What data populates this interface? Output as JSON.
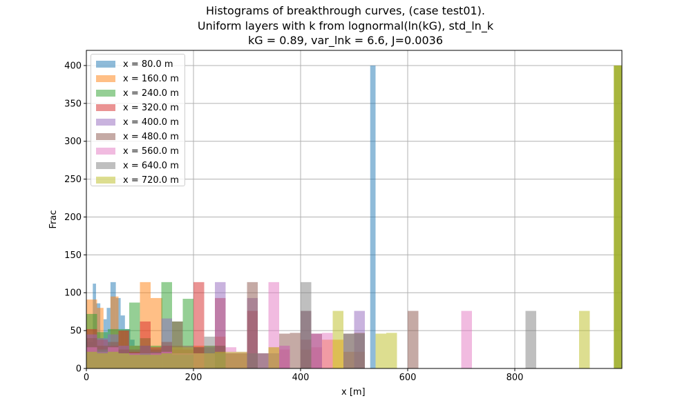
{
  "chart_data": {
    "type": "bar",
    "title_lines": [
      "Histograms of breakthrough curves, (case test01).",
      "Uniform layers with k from lognormal(ln(kG), std_ln_k",
      "kG = 0.89, var_lnk = 6.6, J=0.0036"
    ],
    "xlabel": "x [m]",
    "ylabel": "Frac",
    "xlim": [
      0,
      1000
    ],
    "ylim": [
      0,
      420
    ],
    "x_ticks": [
      0,
      200,
      400,
      600,
      800
    ],
    "y_ticks": [
      0,
      50,
      100,
      150,
      200,
      250,
      300,
      350,
      400
    ],
    "grid": true,
    "legend_position": "upper-left",
    "bar_alpha": 0.5,
    "series": [
      {
        "name": "x = 80.0 m",
        "color": "#1f77b4",
        "bins": [
          [
            0,
            12,
            35
          ],
          [
            12,
            18,
            112
          ],
          [
            18,
            26,
            86
          ],
          [
            26,
            32,
            40
          ],
          [
            32,
            38,
            65
          ],
          [
            38,
            45,
            80
          ],
          [
            45,
            55,
            114
          ],
          [
            55,
            64,
            93
          ],
          [
            64,
            72,
            70
          ],
          [
            72,
            82,
            52
          ],
          [
            82,
            90,
            38
          ],
          [
            90,
            100,
            30
          ],
          [
            530,
            540,
            400
          ]
        ]
      },
      {
        "name": "x = 160.0 m",
        "color": "#ff7f0e",
        "bins": [
          [
            0,
            20,
            91
          ],
          [
            20,
            32,
            80
          ],
          [
            32,
            45,
            20
          ],
          [
            45,
            60,
            95
          ],
          [
            60,
            78,
            50
          ],
          [
            78,
            100,
            30
          ],
          [
            100,
            120,
            114
          ],
          [
            120,
            142,
            93
          ],
          [
            142,
            160,
            30
          ],
          [
            160,
            180,
            30
          ],
          [
            180,
            200,
            25
          ],
          [
            200,
            240,
            30
          ],
          [
            240,
            260,
            42
          ],
          [
            260,
            290,
            20
          ],
          [
            290,
            320,
            20
          ],
          [
            340,
            360,
            28
          ],
          [
            400,
            420,
            25
          ],
          [
            440,
            480,
            38
          ],
          [
            480,
            520,
            22
          ],
          [
            985,
            1000,
            400
          ]
        ]
      },
      {
        "name": "x = 240.0 m",
        "color": "#2ca02c",
        "bins": [
          [
            0,
            20,
            72
          ],
          [
            20,
            40,
            48
          ],
          [
            40,
            60,
            52
          ],
          [
            60,
            80,
            52
          ],
          [
            80,
            100,
            87
          ],
          [
            100,
            120,
            40
          ],
          [
            120,
            140,
            30
          ],
          [
            140,
            160,
            114
          ],
          [
            160,
            180,
            62
          ],
          [
            180,
            200,
            92
          ],
          [
            200,
            220,
            28
          ],
          [
            220,
            240,
            30
          ],
          [
            240,
            260,
            30
          ],
          [
            260,
            300,
            20
          ],
          [
            985,
            1000,
            400
          ]
        ]
      },
      {
        "name": "x = 320.0 m",
        "color": "#d62728",
        "bins": [
          [
            0,
            20,
            52
          ],
          [
            20,
            40,
            38
          ],
          [
            40,
            60,
            30
          ],
          [
            60,
            80,
            50
          ],
          [
            80,
            100,
            22
          ],
          [
            100,
            120,
            62
          ],
          [
            120,
            140,
            28
          ],
          [
            140,
            160,
            30
          ],
          [
            160,
            200,
            25
          ],
          [
            200,
            220,
            114
          ],
          [
            220,
            240,
            20
          ],
          [
            240,
            260,
            93
          ],
          [
            260,
            300,
            20
          ],
          [
            300,
            320,
            76
          ],
          [
            360,
            380,
            25
          ],
          [
            400,
            420,
            38
          ],
          [
            420,
            440,
            28
          ]
        ]
      },
      {
        "name": "x = 400.0 m",
        "color": "#9467bd",
        "bins": [
          [
            0,
            20,
            45
          ],
          [
            20,
            40,
            40
          ],
          [
            40,
            60,
            45
          ],
          [
            60,
            80,
            30
          ],
          [
            80,
            100,
            20
          ],
          [
            100,
            120,
            30
          ],
          [
            120,
            140,
            22
          ],
          [
            140,
            160,
            66
          ],
          [
            160,
            200,
            28
          ],
          [
            240,
            260,
            114
          ],
          [
            260,
            300,
            20
          ],
          [
            300,
            320,
            93
          ],
          [
            320,
            360,
            20
          ],
          [
            360,
            380,
            30
          ],
          [
            400,
            420,
            76
          ],
          [
            420,
            440,
            46
          ],
          [
            500,
            520,
            76
          ]
        ]
      },
      {
        "name": "x = 480.0 m",
        "color": "#8c564b",
        "bins": [
          [
            0,
            20,
            40
          ],
          [
            20,
            40,
            30
          ],
          [
            40,
            60,
            35
          ],
          [
            60,
            80,
            25
          ],
          [
            80,
            100,
            25
          ],
          [
            100,
            120,
            30
          ],
          [
            120,
            140,
            25
          ],
          [
            140,
            160,
            35
          ],
          [
            160,
            180,
            62
          ],
          [
            180,
            200,
            30
          ],
          [
            200,
            240,
            28
          ],
          [
            240,
            260,
            30
          ],
          [
            260,
            300,
            20
          ],
          [
            300,
            320,
            114
          ],
          [
            320,
            360,
            20
          ],
          [
            360,
            380,
            46
          ],
          [
            380,
            400,
            47
          ],
          [
            400,
            420,
            76
          ],
          [
            420,
            440,
            46
          ],
          [
            480,
            500,
            46
          ],
          [
            500,
            520,
            47
          ],
          [
            600,
            620,
            76
          ]
        ]
      },
      {
        "name": "x = 560.0 m",
        "color": "#e377c2",
        "bins": [
          [
            0,
            20,
            28
          ],
          [
            20,
            40,
            22
          ],
          [
            40,
            60,
            28
          ],
          [
            60,
            80,
            20
          ],
          [
            80,
            100,
            20
          ],
          [
            100,
            120,
            20
          ],
          [
            120,
            140,
            20
          ],
          [
            140,
            160,
            22
          ],
          [
            160,
            200,
            20
          ],
          [
            200,
            240,
            20
          ],
          [
            260,
            280,
            28
          ],
          [
            280,
            300,
            22
          ],
          [
            340,
            360,
            114
          ],
          [
            360,
            380,
            30
          ],
          [
            420,
            440,
            46
          ],
          [
            440,
            460,
            47
          ],
          [
            700,
            720,
            76
          ]
        ]
      },
      {
        "name": "x = 640.0 m",
        "color": "#7f7f7f",
        "bins": [
          [
            0,
            20,
            22
          ],
          [
            20,
            40,
            25
          ],
          [
            40,
            60,
            22
          ],
          [
            60,
            80,
            20
          ],
          [
            80,
            100,
            18
          ],
          [
            100,
            120,
            20
          ],
          [
            120,
            140,
            18
          ],
          [
            140,
            160,
            20
          ],
          [
            160,
            200,
            18
          ],
          [
            220,
            240,
            42
          ],
          [
            240,
            260,
            20
          ],
          [
            300,
            320,
            20
          ],
          [
            400,
            420,
            114
          ],
          [
            480,
            500,
            46
          ],
          [
            500,
            520,
            46
          ],
          [
            820,
            840,
            76
          ]
        ]
      },
      {
        "name": "x = 720.0 m",
        "color": "#bcbd22",
        "bins": [
          [
            0,
            20,
            22
          ],
          [
            20,
            40,
            20
          ],
          [
            40,
            60,
            22
          ],
          [
            60,
            80,
            20
          ],
          [
            80,
            100,
            18
          ],
          [
            100,
            120,
            18
          ],
          [
            120,
            140,
            18
          ],
          [
            140,
            160,
            20
          ],
          [
            160,
            200,
            28
          ],
          [
            200,
            240,
            20
          ],
          [
            240,
            280,
            22
          ],
          [
            280,
            300,
            22
          ],
          [
            340,
            360,
            28
          ],
          [
            460,
            480,
            76
          ],
          [
            540,
            560,
            46
          ],
          [
            560,
            580,
            47
          ],
          [
            920,
            940,
            76
          ],
          [
            985,
            1000,
            400
          ]
        ]
      }
    ]
  }
}
